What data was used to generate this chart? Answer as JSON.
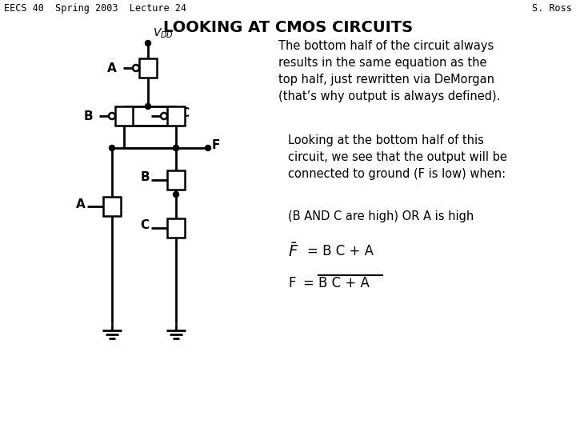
{
  "bg_color": "#ffffff",
  "header_left": "EECS 40  Spring 2003  Lecture 24",
  "header_right": "S. Ross",
  "title": "LOOKING AT CMOS CIRCUITS",
  "para1": "The bottom half of the circuit always\nresults in the same equation as the\ntop half, just rewritten via DeMorgan\n(that’s why output is always defined).",
  "para2": "Looking at the bottom half of this\ncircuit, we see that the output will be\nconnected to ground (F is low) when:",
  "para3": "(B AND C are high) OR A is high",
  "eq1_lhs": "$\\overline{F}$",
  "eq1_rhs": "= B C + A",
  "eq2_lhs": "F",
  "eq2_rhs": "= B C + A",
  "header_fontsize": 8.5,
  "title_fontsize": 14,
  "body_fontsize": 10.5,
  "eq_fontsize": 12
}
